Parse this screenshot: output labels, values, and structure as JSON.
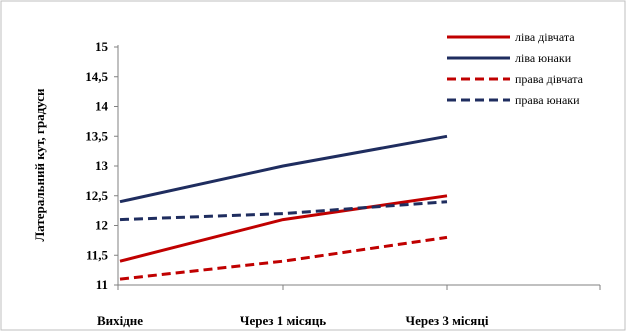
{
  "chart_data": {
    "type": "line",
    "title": "",
    "xlabel": "",
    "ylabel": "Латеральний кут, градуси",
    "categories": [
      "Вихідне",
      "Через 1 місяць",
      "Через 3 місяці"
    ],
    "ylim": [
      11,
      15
    ],
    "yticks": [
      "11",
      "11,5",
      "12",
      "12,5",
      "13",
      "13,5",
      "14",
      "14,5",
      "15"
    ],
    "grid": false,
    "legend_position": "top-right",
    "series": [
      {
        "name": "ліва дівчата",
        "values": [
          11.4,
          12.1,
          12.5
        ],
        "color": "#C00000",
        "dash": "solid"
      },
      {
        "name": "ліва юнаки",
        "values": [
          12.4,
          13.0,
          13.5
        ],
        "color": "#1F2D5F",
        "dash": "solid"
      },
      {
        "name": "права дівчата",
        "values": [
          11.1,
          11.4,
          11.8
        ],
        "color": "#C00000",
        "dash": "dashed"
      },
      {
        "name": "права юнаки",
        "values": [
          12.1,
          12.2,
          12.4
        ],
        "color": "#1F2D5F",
        "dash": "dashed"
      }
    ]
  }
}
